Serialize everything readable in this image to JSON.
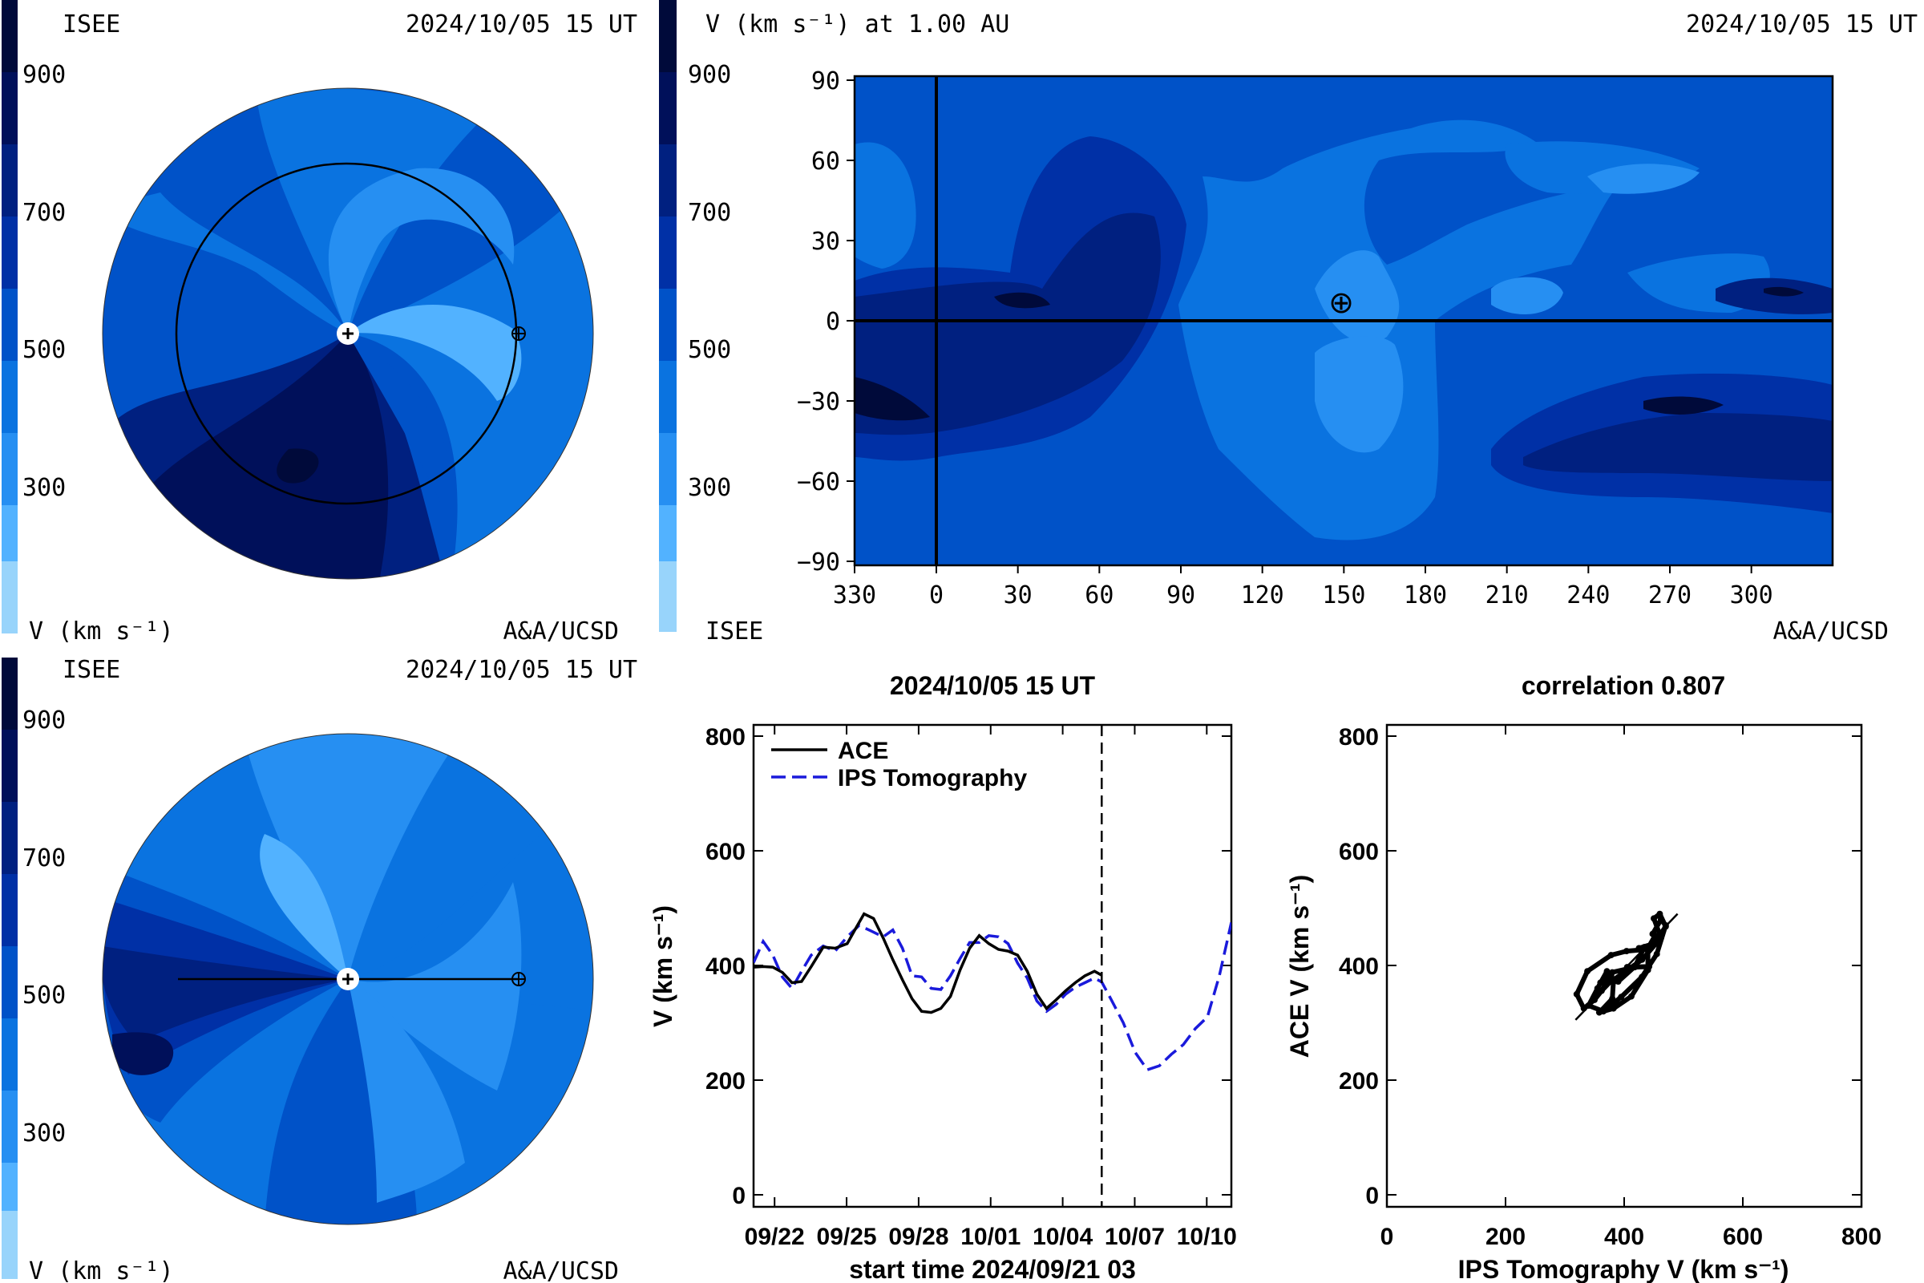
{
  "colors": {
    "v900": "#000a3a",
    "v800": "#00105a",
    "v700": "#002080",
    "v600": "#0030a6",
    "v500": "#0052c8",
    "v400": "#0a73e0",
    "v300": "#268ff2",
    "v200": "#52b2ff",
    "v100": "#98d4fb",
    "ace_line": "#000000",
    "ips_line": "#1a1adb"
  },
  "top_left_panel": {
    "label_left": "ISEE",
    "timestamp": "2024/10/05 15 UT",
    "colorbar_ticks": [
      "900",
      "700",
      "500",
      "300"
    ],
    "colorbar_label": "V (km s⁻¹)",
    "credit": "A&A/UCSD"
  },
  "top_map_panel": {
    "colorbar_ticks": [
      "900",
      "700",
      "500",
      "300"
    ],
    "title_left": "V (km s⁻¹) at 1.00 AU",
    "timestamp": "2024/10/05 15 UT",
    "label_isee": "ISEE",
    "credit": "A&A/UCSD",
    "lat_ticks": [
      "90",
      "60",
      "30",
      "0",
      "−30",
      "−60",
      "−90"
    ],
    "lon_ticks": [
      "330",
      "0",
      "30",
      "60",
      "90",
      "120",
      "150",
      "180",
      "210",
      "240",
      "270",
      "300"
    ],
    "earth_marker": "⊕"
  },
  "bottom_left_panel": {
    "label_left": "ISEE",
    "timestamp": "2024/10/05 15 UT",
    "colorbar_ticks": [
      "900",
      "700",
      "500",
      "300"
    ],
    "colorbar_label": "V (km s⁻¹)",
    "credit": "A&A/UCSD"
  },
  "chart_data": [
    {
      "type": "line",
      "title": "2024/10/05 15 UT",
      "xlabel": "start time 2024/09/21 03",
      "ylabel": "V (km s⁻¹)",
      "x_unit": "days since 2024/09/21 03 UT",
      "xlim": [
        0,
        19.9
      ],
      "ylim": [
        0,
        800
      ],
      "yticks": [
        "800",
        "600",
        "400",
        "200",
        "0"
      ],
      "xtick_labels": [
        "09/22",
        "09/25",
        "09/28",
        "10/01",
        "10/04",
        "10/07",
        "10/10"
      ],
      "xtick_values": [
        0.875,
        3.875,
        6.875,
        9.875,
        12.875,
        15.875,
        18.875
      ],
      "vline_x": 14.5,
      "series": [
        {
          "name": "ACE",
          "style": "solid",
          "x": [
            0.0,
            0.4,
            0.8,
            1.2,
            1.6,
            2.0,
            2.4,
            2.9,
            3.4,
            3.9,
            4.3,
            4.6,
            5.0,
            5.4,
            5.8,
            6.2,
            6.6,
            7.0,
            7.4,
            7.8,
            8.2,
            8.6,
            9.0,
            9.4,
            9.8,
            10.2,
            10.6,
            11.0,
            11.4,
            11.8,
            12.2,
            12.6,
            13.0,
            13.4,
            13.8,
            14.2,
            14.5
          ],
          "values": [
            397,
            398,
            397,
            388,
            370,
            372,
            398,
            432,
            430,
            438,
            468,
            490,
            482,
            448,
            410,
            375,
            342,
            320,
            318,
            325,
            346,
            392,
            430,
            452,
            438,
            428,
            425,
            418,
            390,
            350,
            325,
            340,
            356,
            370,
            382,
            390,
            383
          ]
        },
        {
          "name": "IPS Tomography",
          "style": "dashed",
          "x": [
            0.0,
            0.4,
            0.8,
            1.2,
            1.6,
            2.0,
            2.4,
            2.9,
            3.4,
            3.9,
            4.4,
            4.9,
            5.4,
            5.8,
            6.2,
            6.6,
            7.0,
            7.4,
            7.8,
            8.2,
            8.6,
            9.0,
            9.4,
            9.8,
            10.2,
            10.6,
            11.0,
            11.4,
            11.8,
            12.2,
            12.6,
            13.0,
            13.4,
            13.8,
            14.2,
            14.5,
            14.9,
            15.4,
            15.9,
            16.4,
            16.9,
            17.4,
            17.9,
            18.4,
            18.9,
            19.4,
            19.9
          ],
          "values": [
            405,
            442,
            418,
            380,
            360,
            390,
            418,
            434,
            425,
            450,
            470,
            460,
            450,
            462,
            430,
            382,
            380,
            360,
            358,
            382,
            412,
            440,
            440,
            452,
            450,
            438,
            404,
            378,
            338,
            320,
            332,
            350,
            362,
            370,
            378,
            371,
            340,
            300,
            248,
            218,
            225,
            245,
            262,
            290,
            310,
            382,
            475
          ]
        }
      ]
    },
    {
      "type": "scatter",
      "title": "correlation 0.807",
      "xlabel": "IPS Tomography V (km s⁻¹)",
      "ylabel": "ACE V (km s⁻¹)",
      "xlim": [
        0,
        800
      ],
      "ylim": [
        0,
        800
      ],
      "xticks": [
        "0",
        "200",
        "400",
        "600",
        "800"
      ],
      "yticks": [
        "800",
        "600",
        "400",
        "200",
        "0"
      ],
      "fit_line": {
        "x": [
          318,
          490
        ],
        "y": [
          305,
          490
        ]
      },
      "x": [
        405,
        442,
        418,
        380,
        360,
        390,
        418,
        434,
        425,
        450,
        470,
        460,
        450,
        462,
        430,
        382,
        380,
        360,
        358,
        382,
        412,
        440,
        440,
        452,
        450,
        438,
        404,
        378,
        338,
        320,
        332,
        350,
        362,
        370,
        378,
        371,
        355,
        340,
        365,
        395,
        430,
        455,
        470,
        462,
        448
      ],
      "y": [
        397,
        398,
        397,
        388,
        370,
        372,
        398,
        432,
        430,
        438,
        468,
        490,
        482,
        448,
        410,
        375,
        342,
        320,
        318,
        325,
        346,
        392,
        430,
        452,
        438,
        428,
        425,
        418,
        390,
        350,
        325,
        340,
        356,
        370,
        382,
        390,
        360,
        330,
        320,
        345,
        380,
        420,
        470,
        480,
        455
      ]
    }
  ]
}
